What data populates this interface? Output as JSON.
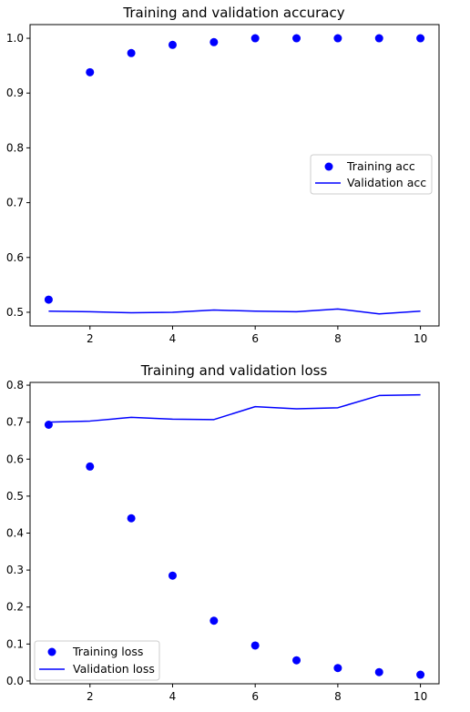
{
  "chart_data": [
    {
      "type": "scatter+line",
      "title": "Training and validation accuracy",
      "x": [
        1,
        2,
        3,
        4,
        5,
        6,
        7,
        8,
        9,
        10
      ],
      "series": [
        {
          "name": "Training acc",
          "style": "points",
          "color": "#0000ff",
          "values": [
            0.523,
            0.938,
            0.973,
            0.988,
            0.993,
            1.0,
            1.0,
            1.0,
            1.0,
            1.0
          ]
        },
        {
          "name": "Validation acc",
          "style": "line",
          "color": "#0000ff",
          "values": [
            0.502,
            0.501,
            0.499,
            0.5,
            0.504,
            0.502,
            0.501,
            0.506,
            0.497,
            0.502
          ]
        }
      ],
      "xlim": [
        0.55,
        10.45
      ],
      "ylim": [
        0.475,
        1.025
      ],
      "x_ticks": [
        "2",
        "4",
        "6",
        "8",
        "10"
      ],
      "y_ticks": [
        "0.5",
        "0.6",
        "0.7",
        "0.8",
        "0.9",
        "1.0"
      ],
      "legend": "center-right",
      "grid": false
    },
    {
      "type": "scatter+line",
      "title": "Training and validation loss",
      "x": [
        1,
        2,
        3,
        4,
        5,
        6,
        7,
        8,
        9,
        10
      ],
      "series": [
        {
          "name": "Training loss",
          "style": "points",
          "color": "#0000ff",
          "values": [
            0.693,
            0.58,
            0.44,
            0.285,
            0.163,
            0.096,
            0.056,
            0.035,
            0.024,
            0.017
          ]
        },
        {
          "name": "Validation loss",
          "style": "line",
          "color": "#0000ff",
          "values": [
            0.7,
            0.703,
            0.713,
            0.708,
            0.707,
            0.742,
            0.736,
            0.739,
            0.772,
            0.774
          ]
        }
      ],
      "xlim": [
        0.55,
        10.45
      ],
      "ylim": [
        -0.0075,
        0.8075
      ],
      "x_ticks": [
        "2",
        "4",
        "6",
        "8",
        "10"
      ],
      "y_ticks": [
        "0.0",
        "0.1",
        "0.2",
        "0.3",
        "0.4",
        "0.5",
        "0.6",
        "0.7",
        "0.8"
      ],
      "legend": "lower-left",
      "grid": false
    }
  ]
}
